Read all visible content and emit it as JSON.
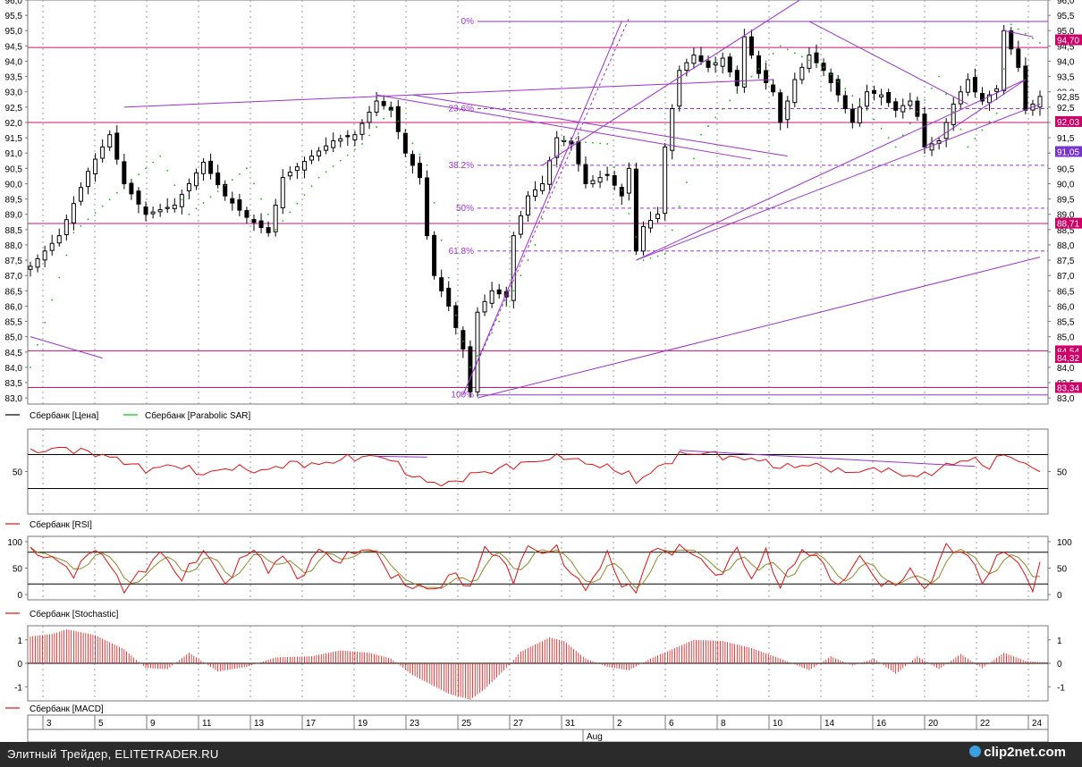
{
  "chart_data": [
    {
      "type": "candlestick",
      "series": [
        {
          "name": "Сбербанк [Цена]"
        },
        {
          "name": "Сбербанк [Parabolic SAR]"
        }
      ],
      "ylim": [
        82.8,
        96.0
      ],
      "y_ticks": [
        "83,0",
        "83,5",
        "84,0",
        "84,5",
        "85,0",
        "85,5",
        "86,0",
        "86,5",
        "87,0",
        "87,5",
        "88,0",
        "88,5",
        "89,0",
        "89,5",
        "90,0",
        "90,5",
        "91,0",
        "91,5",
        "92,0",
        "92,5",
        "93,0",
        "93,5",
        "94,0",
        "94,5",
        "95,0",
        "95,5",
        "96,0"
      ],
      "price_badges": [
        "94,70",
        "92,85",
        "92,03",
        "91,05",
        "88,71",
        "84,54",
        "84,32",
        "83,34"
      ],
      "fib_labels": [
        "0%",
        "23.6%",
        "38.2%",
        "50%",
        "61.8%",
        "100%"
      ],
      "fib_values": [
        95.3,
        92.45,
        90.6,
        89.2,
        87.8,
        83.1
      ],
      "horizontal_levels": [
        94.45,
        92.0,
        88.7,
        84.54,
        83.34
      ],
      "close_path": [
        [
          0,
          87.3
        ],
        [
          4,
          88.3
        ],
        [
          8,
          90.4
        ],
        [
          11,
          91.6
        ],
        [
          13,
          90.0
        ],
        [
          16,
          89.0
        ],
        [
          20,
          89.3
        ],
        [
          24,
          90.7
        ],
        [
          27,
          89.6
        ],
        [
          30,
          88.9
        ],
        [
          33,
          88.4
        ],
        [
          35,
          90.2
        ],
        [
          39,
          90.9
        ],
        [
          42,
          91.4
        ],
        [
          45,
          91.6
        ],
        [
          48,
          92.7
        ],
        [
          50,
          92.4
        ],
        [
          52,
          91.0
        ],
        [
          54,
          90.2
        ],
        [
          55,
          88.3
        ],
        [
          56,
          87.0
        ],
        [
          58,
          86.0
        ],
        [
          60,
          84.6
        ],
        [
          61,
          83.2
        ],
        [
          62,
          85.8
        ],
        [
          64,
          86.5
        ],
        [
          66,
          86.3
        ],
        [
          67,
          88.3
        ],
        [
          69,
          89.6
        ],
        [
          71,
          90.0
        ],
        [
          73,
          91.5
        ],
        [
          75,
          91.3
        ],
        [
          77,
          90.0
        ],
        [
          80,
          90.3
        ],
        [
          82,
          89.6
        ],
        [
          83,
          90.5
        ],
        [
          84,
          87.8
        ],
        [
          85,
          88.6
        ],
        [
          87,
          89.0
        ],
        [
          88,
          91.2
        ],
        [
          90,
          93.7
        ],
        [
          92,
          94.2
        ],
        [
          94,
          93.8
        ],
        [
          96,
          94.1
        ],
        [
          98,
          93.2
        ],
        [
          99,
          94.8
        ],
        [
          101,
          93.6
        ],
        [
          103,
          93.0
        ],
        [
          104,
          92.0
        ],
        [
          106,
          93.4
        ],
        [
          108,
          94.2
        ],
        [
          110,
          93.7
        ],
        [
          112,
          92.9
        ],
        [
          114,
          92.0
        ],
        [
          116,
          93.0
        ],
        [
          118,
          92.9
        ],
        [
          120,
          92.4
        ],
        [
          122,
          92.7
        ],
        [
          123,
          92.2
        ],
        [
          124,
          91.2
        ],
        [
          126,
          91.4
        ],
        [
          128,
          92.6
        ],
        [
          130,
          93.4
        ],
        [
          131,
          93.0
        ],
        [
          132,
          92.7
        ],
        [
          134,
          93.1
        ],
        [
          135,
          95.0
        ],
        [
          137,
          93.8
        ],
        [
          138,
          92.4
        ],
        [
          139,
          92.6
        ],
        [
          140,
          92.85
        ]
      ],
      "sar_path": [
        [
          0,
          84.0
        ],
        [
          6,
          88.4
        ],
        [
          12,
          89.7
        ],
        [
          18,
          90.9
        ],
        [
          22,
          89.0
        ],
        [
          30,
          90.5
        ],
        [
          34,
          88.5
        ],
        [
          40,
          90.2
        ],
        [
          46,
          91.3
        ],
        [
          50,
          92.4
        ],
        [
          55,
          90.6
        ],
        [
          59,
          85.7
        ],
        [
          61,
          84.0
        ],
        [
          65,
          85.5
        ],
        [
          70,
          88.0
        ],
        [
          74,
          91.4
        ],
        [
          80,
          91.3
        ],
        [
          85,
          87.5
        ],
        [
          88,
          87.7
        ],
        [
          93,
          91.6
        ],
        [
          98,
          93.0
        ],
        [
          104,
          94.5
        ],
        [
          110,
          93.8
        ],
        [
          116,
          92.4
        ],
        [
          120,
          91.2
        ],
        [
          126,
          93.5
        ],
        [
          130,
          91.2
        ],
        [
          134,
          92.3
        ],
        [
          136,
          95.2
        ],
        [
          140,
          94.6
        ]
      ],
      "x_labels": [
        "3",
        "5",
        "9",
        "11",
        "13",
        "17",
        "19",
        "23",
        "25",
        "27",
        "31",
        "2",
        "6",
        "8",
        "10",
        "14",
        "16",
        "20",
        "22",
        "24"
      ],
      "month_label": "Aug"
    },
    {
      "type": "line",
      "series": [
        {
          "name": "Сбербанк [RSI]"
        }
      ],
      "ylim": [
        0,
        100
      ],
      "y_ticks": [
        "50"
      ],
      "levels": [
        30,
        70
      ],
      "values_path": [
        [
          0,
          72
        ],
        [
          4,
          78
        ],
        [
          8,
          73
        ],
        [
          12,
          65
        ],
        [
          16,
          52
        ],
        [
          20,
          58
        ],
        [
          24,
          47
        ],
        [
          28,
          55
        ],
        [
          32,
          50
        ],
        [
          36,
          60
        ],
        [
          40,
          58
        ],
        [
          44,
          66
        ],
        [
          48,
          68
        ],
        [
          50,
          65
        ],
        [
          52,
          49
        ],
        [
          55,
          38
        ],
        [
          58,
          35
        ],
        [
          60,
          42
        ],
        [
          62,
          49
        ],
        [
          64,
          50
        ],
        [
          66,
          56
        ],
        [
          70,
          62
        ],
        [
          74,
          68
        ],
        [
          77,
          60
        ],
        [
          80,
          55
        ],
        [
          83,
          47
        ],
        [
          84,
          37
        ],
        [
          86,
          50
        ],
        [
          88,
          58
        ],
        [
          90,
          70
        ],
        [
          94,
          72
        ],
        [
          98,
          65
        ],
        [
          100,
          66
        ],
        [
          104,
          55
        ],
        [
          108,
          58
        ],
        [
          110,
          56
        ],
        [
          112,
          50
        ],
        [
          115,
          50
        ],
        [
          118,
          54
        ],
        [
          120,
          48
        ],
        [
          123,
          44
        ],
        [
          126,
          52
        ],
        [
          128,
          61
        ],
        [
          131,
          64
        ],
        [
          133,
          55
        ],
        [
          135,
          72
        ],
        [
          137,
          62
        ],
        [
          139,
          54
        ],
        [
          140,
          54
        ]
      ]
    },
    {
      "type": "line",
      "series": [
        {
          "name": "Сбербанк [Stochastic]"
        }
      ],
      "ylim": [
        -10,
        110
      ],
      "y_ticks": [
        "0",
        "50",
        "100"
      ],
      "levels": [
        20,
        80
      ],
      "values_path": [
        [
          0,
          80
        ],
        [
          3,
          70
        ],
        [
          6,
          40
        ],
        [
          9,
          90
        ],
        [
          11,
          55
        ],
        [
          13,
          10
        ],
        [
          16,
          50
        ],
        [
          18,
          80
        ],
        [
          21,
          30
        ],
        [
          24,
          85
        ],
        [
          27,
          20
        ],
        [
          29,
          60
        ],
        [
          31,
          90
        ],
        [
          33,
          40
        ],
        [
          35,
          80
        ],
        [
          37,
          25
        ],
        [
          40,
          85
        ],
        [
          43,
          60
        ],
        [
          45,
          85
        ],
        [
          48,
          80
        ],
        [
          50,
          35
        ],
        [
          53,
          15
        ],
        [
          56,
          10
        ],
        [
          59,
          40
        ],
        [
          61,
          10
        ],
        [
          63,
          90
        ],
        [
          65,
          70
        ],
        [
          67,
          30
        ],
        [
          69,
          90
        ],
        [
          71,
          80
        ],
        [
          73,
          85
        ],
        [
          75,
          40
        ],
        [
          77,
          10
        ],
        [
          80,
          75
        ],
        [
          82,
          20
        ],
        [
          84,
          5
        ],
        [
          86,
          85
        ],
        [
          88,
          80
        ],
        [
          90,
          88
        ],
        [
          93,
          70
        ],
        [
          95,
          30
        ],
        [
          98,
          85
        ],
        [
          100,
          30
        ],
        [
          102,
          80
        ],
        [
          104,
          15
        ],
        [
          107,
          85
        ],
        [
          110,
          60
        ],
        [
          112,
          10
        ],
        [
          115,
          75
        ],
        [
          117,
          30
        ],
        [
          120,
          15
        ],
        [
          122,
          50
        ],
        [
          124,
          5
        ],
        [
          127,
          90
        ],
        [
          130,
          75
        ],
        [
          132,
          25
        ],
        [
          135,
          85
        ],
        [
          137,
          60
        ],
        [
          139,
          5
        ],
        [
          140,
          70
        ]
      ]
    },
    {
      "type": "bar",
      "series": [
        {
          "name": "Сбербанк [MACD]"
        }
      ],
      "ylim": [
        -1.6,
        1.6
      ],
      "y_ticks": [
        "-1",
        "0",
        "1"
      ],
      "values_path": [
        [
          0,
          1.15
        ],
        [
          3,
          1.25
        ],
        [
          5,
          1.45
        ],
        [
          9,
          1.2
        ],
        [
          13,
          0.6
        ],
        [
          16,
          -0.2
        ],
        [
          19,
          -0.25
        ],
        [
          22,
          0.45
        ],
        [
          26,
          -0.35
        ],
        [
          30,
          -0.15
        ],
        [
          34,
          0.25
        ],
        [
          39,
          0.3
        ],
        [
          43,
          0.55
        ],
        [
          47,
          0.45
        ],
        [
          50,
          0.2
        ],
        [
          53,
          -0.5
        ],
        [
          58,
          -1.3
        ],
        [
          61,
          -1.55
        ],
        [
          63,
          -1.1
        ],
        [
          66,
          -0.2
        ],
        [
          68,
          0.5
        ],
        [
          72,
          1.1
        ],
        [
          74,
          0.95
        ],
        [
          77,
          0.2
        ],
        [
          80,
          -0.15
        ],
        [
          83,
          -0.3
        ],
        [
          86,
          0.2
        ],
        [
          89,
          0.6
        ],
        [
          92,
          1.0
        ],
        [
          96,
          0.95
        ],
        [
          100,
          0.65
        ],
        [
          104,
          0.2
        ],
        [
          108,
          -0.3
        ],
        [
          111,
          0.3
        ],
        [
          114,
          -0.1
        ],
        [
          117,
          0.2
        ],
        [
          120,
          -0.45
        ],
        [
          123,
          0.3
        ],
        [
          126,
          -0.25
        ],
        [
          129,
          0.4
        ],
        [
          132,
          -0.2
        ],
        [
          135,
          0.45
        ],
        [
          138,
          0.1
        ],
        [
          140,
          0.05
        ]
      ]
    }
  ],
  "footer": {
    "caption": "Элитный Трейдер, ELITETRADER.RU",
    "logo": "clip2net.com"
  },
  "colors": {
    "price": "#000000",
    "sar": "#00c000",
    "indicator": "#dd1111",
    "stoch_signal": "#8a8a2a",
    "trend": "#9932cc",
    "level": "#cc1177",
    "badge": "#cc0066",
    "badge_purple": "#7733cc",
    "grid": "#777777"
  }
}
